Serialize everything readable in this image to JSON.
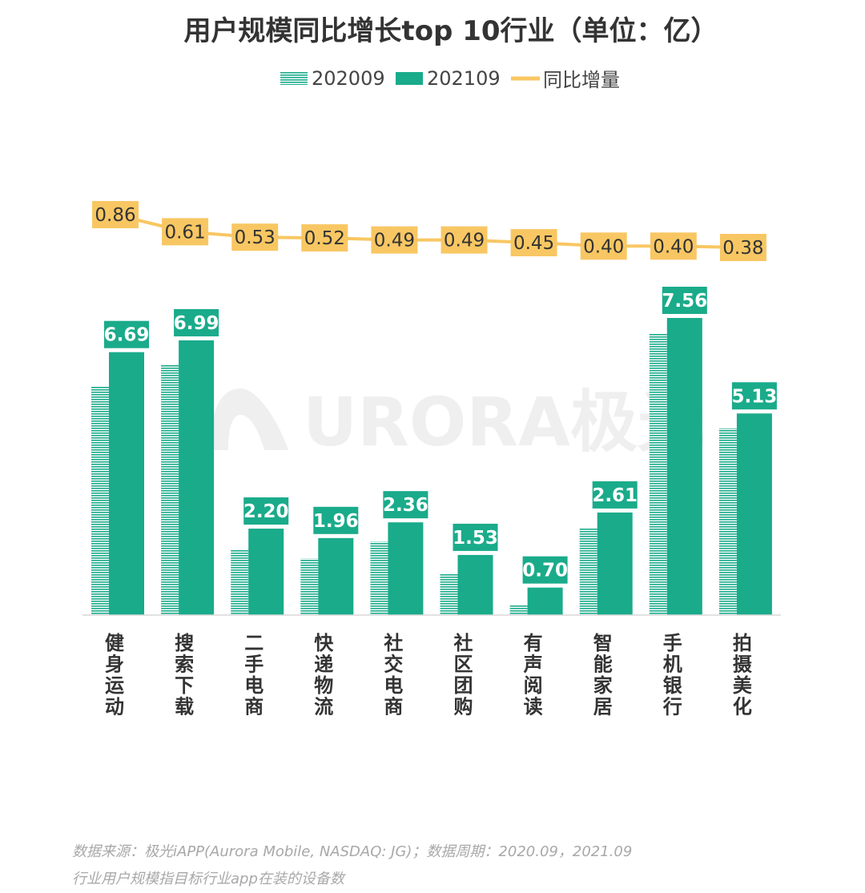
{
  "chart_data": {
    "type": "bar",
    "title": "用户规模同比增长top 10行业（单位：亿）",
    "categories": [
      "健身运动",
      "搜索下载",
      "二手电商",
      "快递物流",
      "社交电商",
      "社区团购",
      "有声阅读",
      "智能家居",
      "手机银行",
      "拍摄美化"
    ],
    "series": [
      {
        "name": "202009",
        "type": "bar",
        "values": [
          5.83,
          6.38,
          1.67,
          1.44,
          1.87,
          1.04,
          0.25,
          2.21,
          7.16,
          4.75
        ]
      },
      {
        "name": "202109",
        "type": "bar",
        "values": [
          6.69,
          6.99,
          2.2,
          1.96,
          2.36,
          1.53,
          0.7,
          2.61,
          7.56,
          5.13
        ]
      },
      {
        "name": "同比增量",
        "type": "line",
        "values": [
          0.86,
          0.61,
          0.53,
          0.52,
          0.49,
          0.49,
          0.45,
          0.4,
          0.4,
          0.38
        ]
      }
    ],
    "value_labels_202109": [
      "6.69",
      "6.99",
      "2.20",
      "1.96",
      "2.36",
      "1.53",
      "0.70",
      "2.61",
      "7.56",
      "5.13"
    ],
    "value_labels_increase": [
      "0.86",
      "0.61",
      "0.53",
      "0.52",
      "0.49",
      "0.49",
      "0.45",
      "0.40",
      "0.40",
      "0.38"
    ],
    "ylim": [
      0,
      7.56
    ],
    "grid": false,
    "legend_position": "top-center",
    "colors": {
      "bar_2020": "#1aab8a",
      "bar_2021": "#1aab8a",
      "line": "#f8c763",
      "label_bg": "#f8c763"
    }
  },
  "watermark": "URORA极光",
  "footnotes": [
    "数据来源：极光iAPP(Aurora Mobile, NASDAQ: JG)；数据周期：2020.09，2021.09",
    "行业用户规模指目标行业app在装的设备数"
  ]
}
